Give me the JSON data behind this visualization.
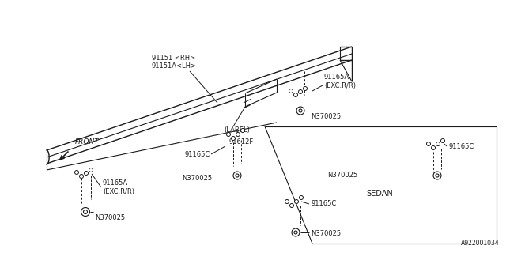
{
  "bg_color": "#ffffff",
  "line_color": "#1a1a1a",
  "text_color": "#1a1a1a",
  "title_bottom_right": "A922001034",
  "parts": {
    "rail_label": "91151 <RH>\n91151A<LH>",
    "label_part": "(LABEL)",
    "part_91612F": "91612F",
    "part_91165C_mid": "91165C",
    "part_N370025_mid": "N370025",
    "part_91165A_top": "91165A\n(EXC.R/R)",
    "part_N370025_top": "N370025",
    "part_91165A_bot": "91165A\n(EXC.R/R)",
    "part_N370025_bot": "N370025",
    "sedan_label": "SEDAN",
    "part_91165C_sedan_r": "91165C",
    "part_N370025_sedan_r": "N370025",
    "part_91165C_sedan_b": "91165C",
    "part_N370025_sedan_b": "N370025",
    "front_label": "FRONT"
  }
}
